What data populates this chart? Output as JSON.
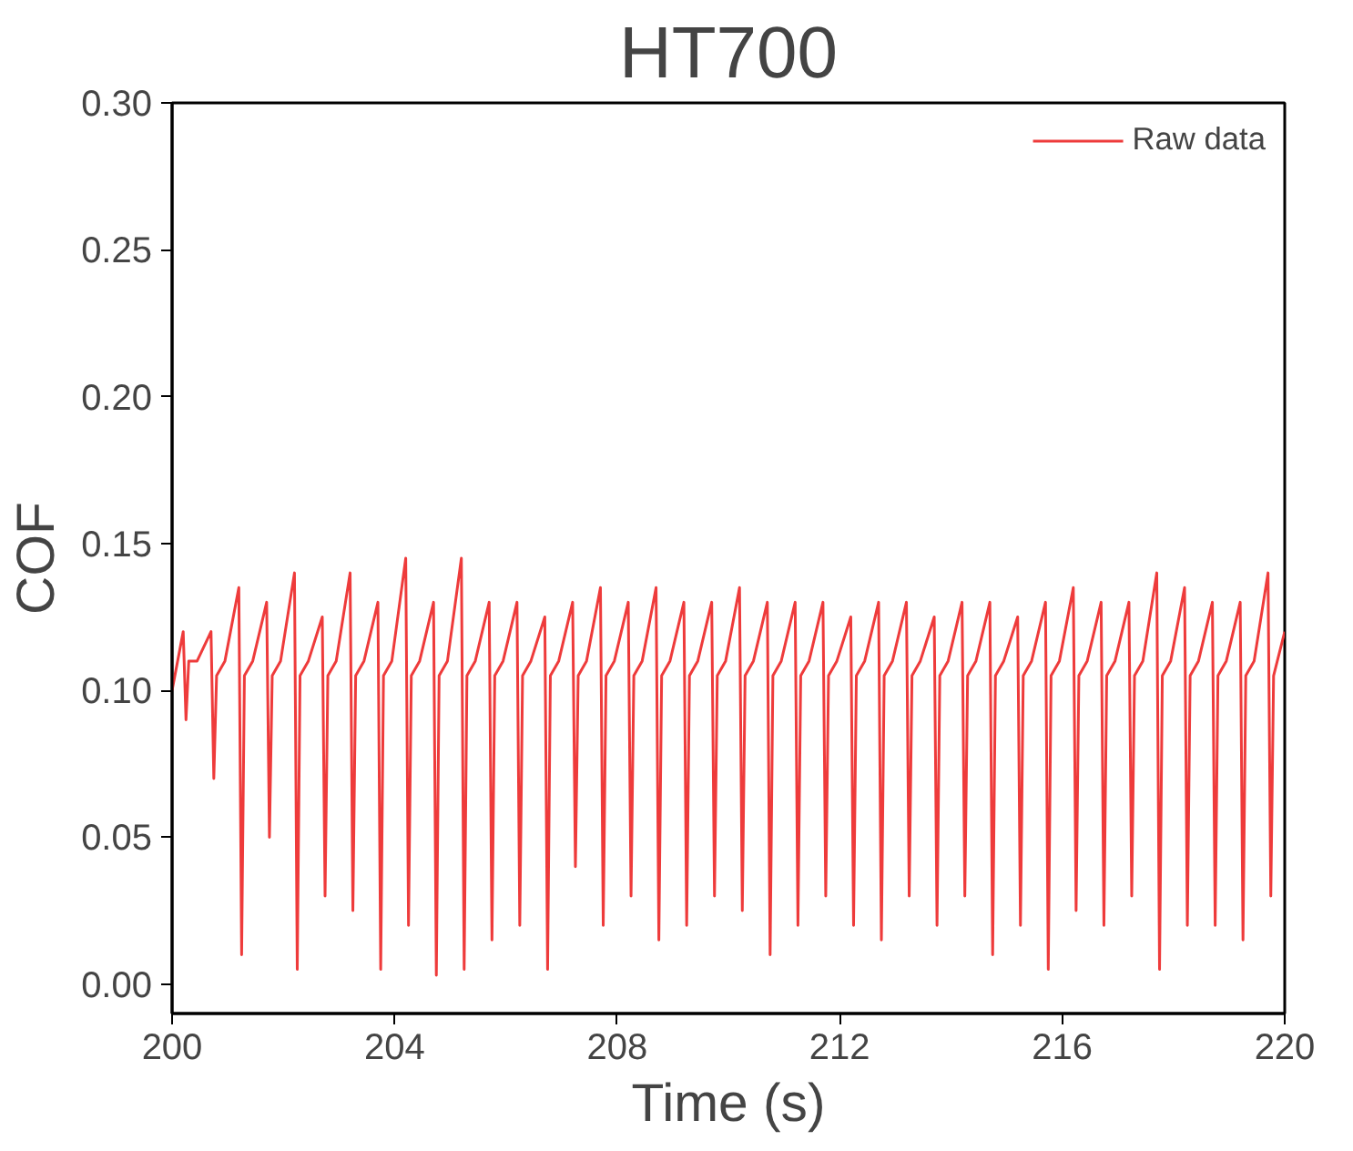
{
  "chart_data": {
    "type": "line",
    "title": "HT700",
    "xlabel": "Time (s)",
    "ylabel": "COF",
    "xlim": [
      200,
      220
    ],
    "xticks": [
      200,
      204,
      208,
      212,
      216,
      220
    ],
    "ylim": [
      -0.01,
      0.3
    ],
    "yticks": [
      {
        "value": 0,
        "label": "0.00"
      },
      {
        "value": 0.05,
        "label": "0.05"
      },
      {
        "value": 0.1,
        "label": "0.10"
      },
      {
        "value": 0.15,
        "label": "0.15"
      },
      {
        "value": 0.2,
        "label": "0.20"
      },
      {
        "value": 0.25,
        "label": "0.25"
      },
      {
        "value": 0.3,
        "label": "0.30"
      }
    ],
    "grid": false,
    "legend": "top right",
    "line_style": "solid",
    "series": [
      {
        "name": "Raw data",
        "color": "#ee3b3b",
        "x": [
          200.0,
          200.2,
          200.25,
          200.3,
          200.45,
          200.7,
          200.75,
          200.8,
          200.95,
          201.2,
          201.25,
          201.3,
          201.45,
          201.7,
          201.75,
          201.8,
          201.95,
          202.2,
          202.25,
          202.3,
          202.45,
          202.7,
          202.75,
          202.8,
          202.95,
          203.2,
          203.25,
          203.3,
          203.45,
          203.7,
          203.75,
          203.8,
          203.95,
          204.2,
          204.25,
          204.3,
          204.45,
          204.7,
          204.75,
          204.8,
          204.95,
          205.2,
          205.25,
          205.3,
          205.45,
          205.7,
          205.75,
          205.8,
          205.95,
          206.2,
          206.25,
          206.3,
          206.45,
          206.7,
          206.75,
          206.8,
          206.95,
          207.2,
          207.25,
          207.3,
          207.45,
          207.7,
          207.75,
          207.8,
          207.95,
          208.2,
          208.25,
          208.3,
          208.45,
          208.7,
          208.75,
          208.8,
          208.95,
          209.2,
          209.25,
          209.3,
          209.45,
          209.7,
          209.75,
          209.8,
          209.95,
          210.2,
          210.25,
          210.3,
          210.45,
          210.7,
          210.75,
          210.8,
          210.95,
          211.2,
          211.25,
          211.3,
          211.45,
          211.7,
          211.75,
          211.8,
          211.95,
          212.2,
          212.25,
          212.3,
          212.45,
          212.7,
          212.75,
          212.8,
          212.95,
          213.2,
          213.25,
          213.3,
          213.45,
          213.7,
          213.75,
          213.8,
          213.95,
          214.2,
          214.25,
          214.3,
          214.45,
          214.7,
          214.75,
          214.8,
          214.95,
          215.2,
          215.25,
          215.3,
          215.45,
          215.7,
          215.75,
          215.8,
          215.95,
          216.2,
          216.25,
          216.3,
          216.45,
          216.7,
          216.75,
          216.8,
          216.95,
          217.2,
          217.25,
          217.3,
          217.45,
          217.7,
          217.75,
          217.8,
          217.95,
          218.2,
          218.25,
          218.3,
          218.45,
          218.7,
          218.75,
          218.8,
          218.95,
          219.2,
          219.25,
          219.3,
          219.45,
          219.7,
          219.75,
          219.8,
          220.0
        ],
        "values": [
          0.1,
          0.12,
          0.09,
          0.11,
          0.11,
          0.12,
          0.07,
          0.105,
          0.11,
          0.135,
          0.01,
          0.105,
          0.11,
          0.13,
          0.05,
          0.105,
          0.11,
          0.14,
          0.005,
          0.105,
          0.11,
          0.125,
          0.03,
          0.105,
          0.11,
          0.14,
          0.025,
          0.105,
          0.11,
          0.13,
          0.005,
          0.105,
          0.11,
          0.145,
          0.02,
          0.105,
          0.11,
          0.13,
          0.003,
          0.105,
          0.11,
          0.145,
          0.005,
          0.105,
          0.11,
          0.13,
          0.015,
          0.105,
          0.11,
          0.13,
          0.02,
          0.105,
          0.11,
          0.125,
          0.005,
          0.105,
          0.11,
          0.13,
          0.04,
          0.105,
          0.11,
          0.135,
          0.02,
          0.105,
          0.11,
          0.13,
          0.03,
          0.105,
          0.11,
          0.135,
          0.015,
          0.105,
          0.11,
          0.13,
          0.02,
          0.105,
          0.11,
          0.13,
          0.03,
          0.105,
          0.11,
          0.135,
          0.025,
          0.105,
          0.11,
          0.13,
          0.01,
          0.105,
          0.11,
          0.13,
          0.02,
          0.105,
          0.11,
          0.13,
          0.03,
          0.105,
          0.11,
          0.125,
          0.02,
          0.105,
          0.11,
          0.13,
          0.015,
          0.105,
          0.11,
          0.13,
          0.03,
          0.105,
          0.11,
          0.125,
          0.02,
          0.105,
          0.11,
          0.13,
          0.03,
          0.105,
          0.11,
          0.13,
          0.01,
          0.105,
          0.11,
          0.125,
          0.02,
          0.105,
          0.11,
          0.13,
          0.005,
          0.105,
          0.11,
          0.135,
          0.025,
          0.105,
          0.11,
          0.13,
          0.02,
          0.105,
          0.11,
          0.13,
          0.03,
          0.105,
          0.11,
          0.14,
          0.005,
          0.105,
          0.11,
          0.135,
          0.02,
          0.105,
          0.11,
          0.13,
          0.02,
          0.105,
          0.11,
          0.13,
          0.015,
          0.105,
          0.11,
          0.14,
          0.03,
          0.105,
          0.12
        ]
      }
    ]
  }
}
